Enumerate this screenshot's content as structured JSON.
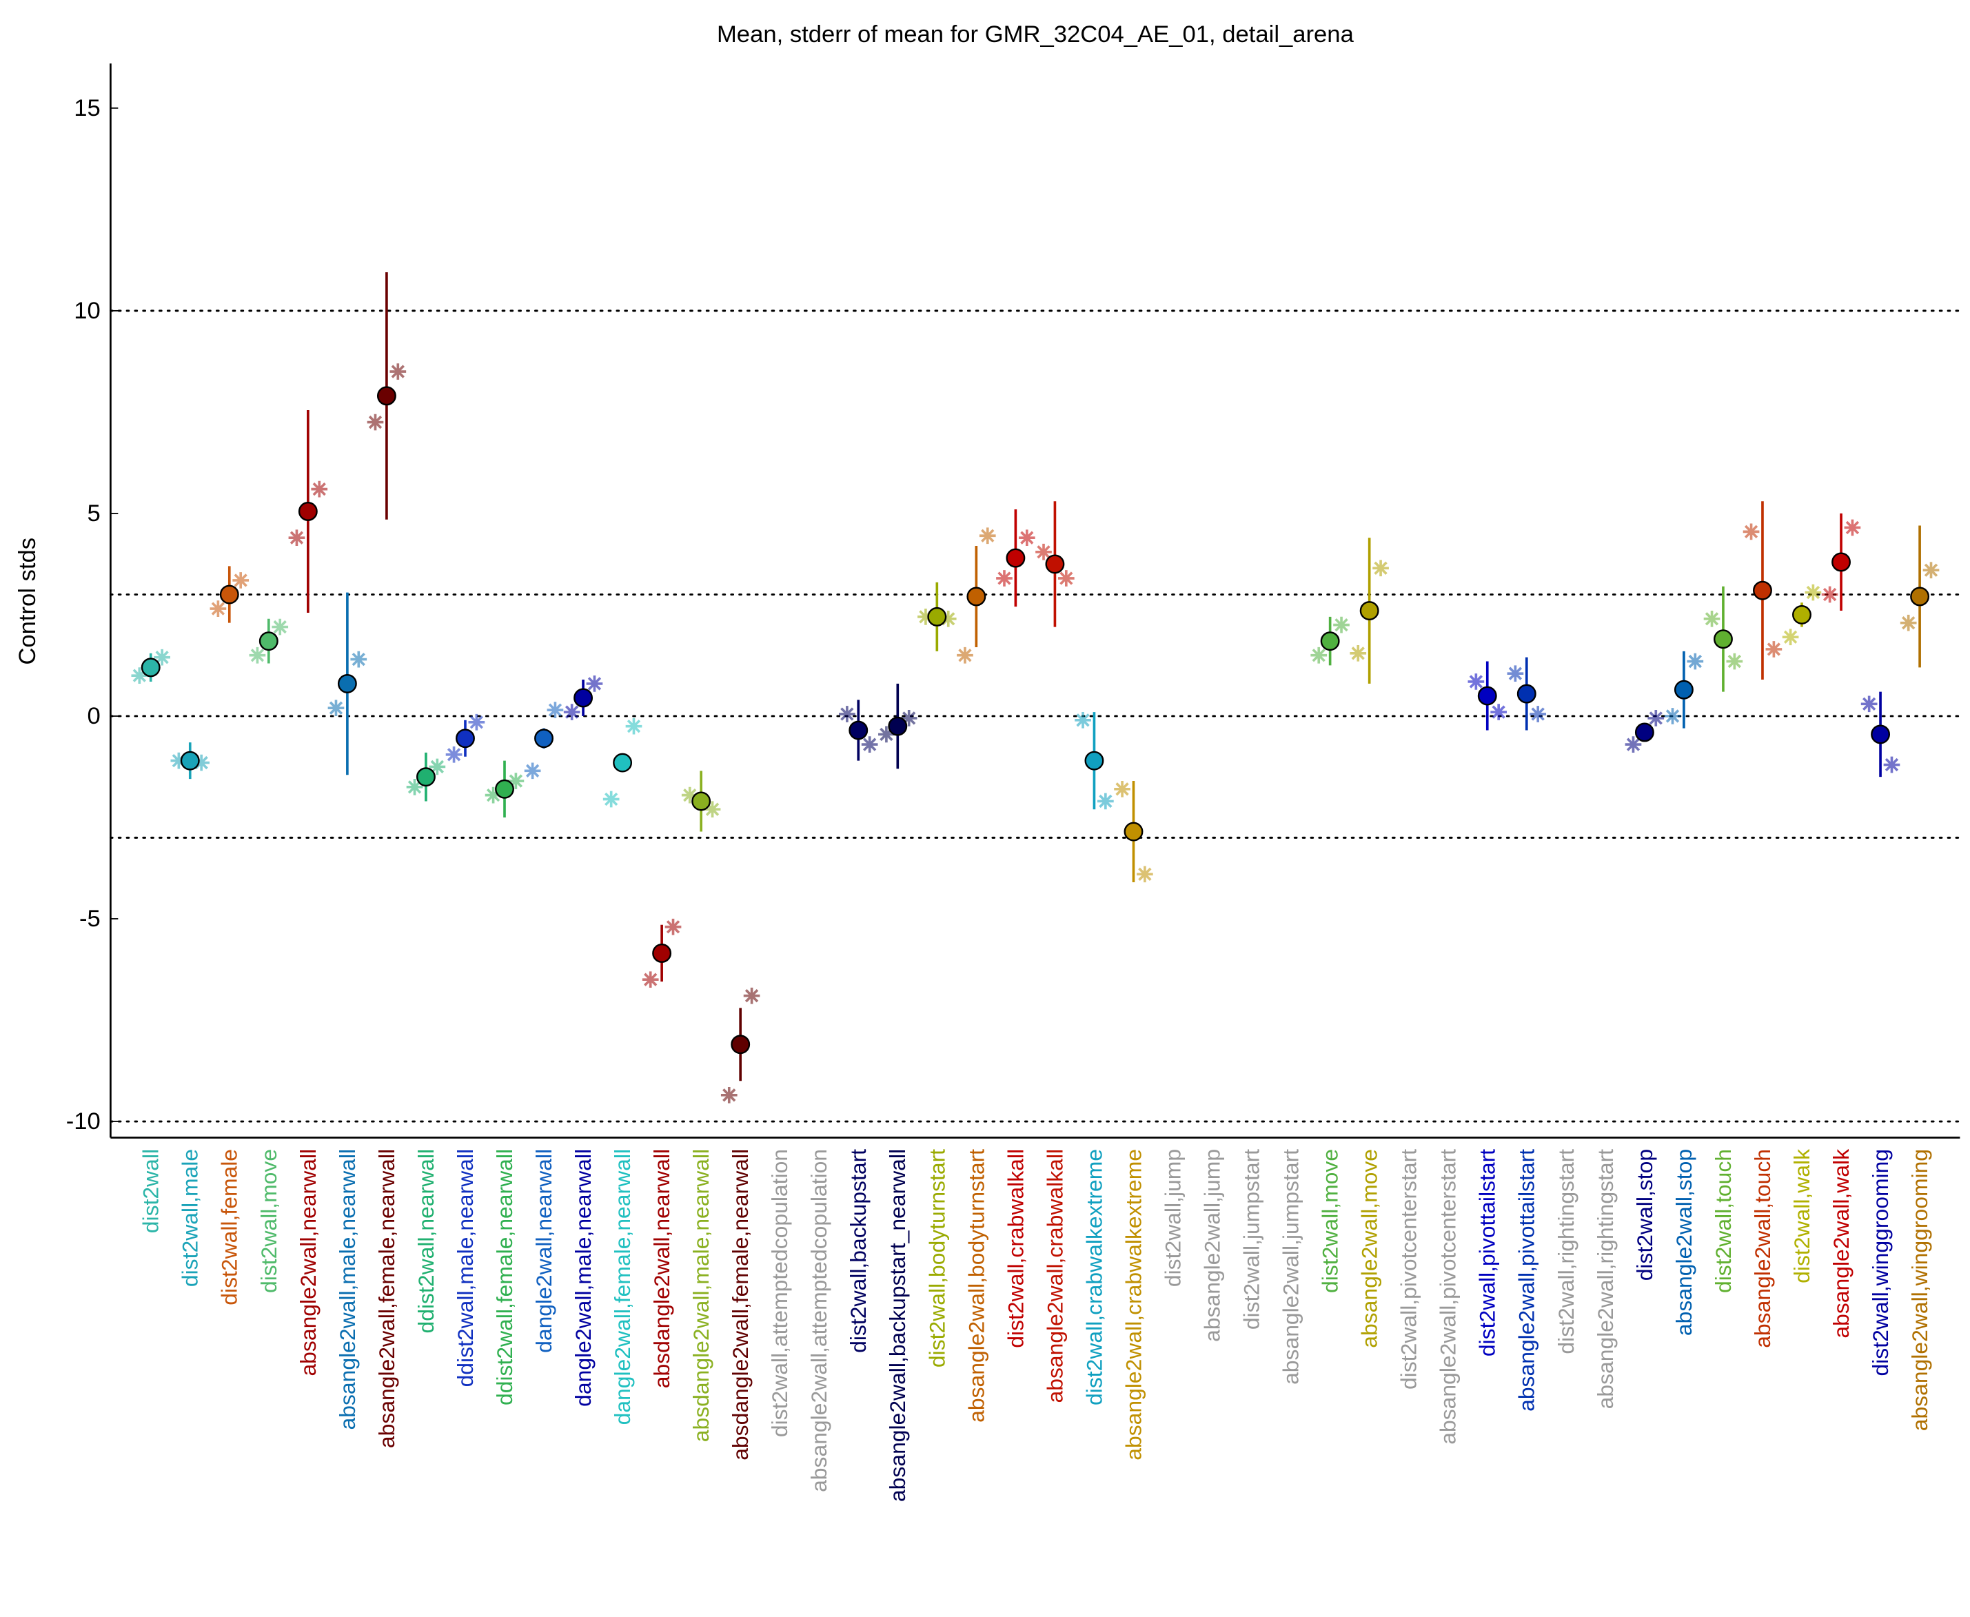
{
  "chart_data": {
    "type": "errorbar",
    "title": "Mean, stderr of mean for GMR_32C04_AE_01, detail_arena",
    "ylabel": "Control stds",
    "ylim": [
      -10.4,
      16.1
    ],
    "yticks": [
      -10,
      -5,
      0,
      5,
      10,
      15
    ],
    "reference_lines": [
      -10,
      -3,
      0,
      3,
      10
    ],
    "categories": [
      "dist2wall",
      "dist2wall,male",
      "dist2wall,female",
      "dist2wall,move",
      "absangle2wall,nearwall",
      "absangle2wall,male,nearwall",
      "absangle2wall,female,nearwall",
      "ddist2wall,nearwall",
      "ddist2wall,male,nearwall",
      "ddist2wall,female,nearwall",
      "dangle2wall,nearwall",
      "dangle2wall,male,nearwall",
      "dangle2wall,female,nearwall",
      "absdangle2wall,nearwall",
      "absdangle2wall,male,nearwall",
      "absdangle2wall,female,nearwall",
      "dist2wall,attemptedcopulation",
      "absangle2wall,attemptedcopulation",
      "dist2wall,backupstart",
      "absangle2wall,backupstart_nearwall",
      "dist2wall,bodyturnstart",
      "absangle2wall,bodyturnstart",
      "dist2wall,crabwalkall",
      "absangle2wall,crabwalkall",
      "dist2wall,crabwalkextreme",
      "absangle2wall,crabwalkextreme",
      "dist2wall,jump",
      "absangle2wall,jump",
      "dist2wall,jumpstart",
      "absangle2wall,jumpstart",
      "dist2wall,move",
      "absangle2wall,move",
      "dist2wall,pivotcenterstart",
      "absangle2wall,pivotcenterstart",
      "dist2wall,pivottailstart",
      "absangle2wall,pivottailstart",
      "dist2wall,rightingstart",
      "absangle2wall,rightingstart",
      "dist2wall,stop",
      "absangle2wall,stop",
      "dist2wall,touch",
      "absangle2wall,touch",
      "dist2wall,walk",
      "absangle2wall,walk",
      "dist2wall,winggrooming",
      "absangle2wall,winggrooming"
    ],
    "colors": [
      "#2cb5a8",
      "#1aa3b8",
      "#c8560a",
      "#4fba6a",
      "#a00000",
      "#0a6eb0",
      "#6a0000",
      "#20b070",
      "#1030c0",
      "#30b050",
      "#1060c0",
      "#0000a0",
      "#20c0c0",
      "#a00000",
      "#8ab020",
      "#600000",
      "#999999",
      "#999999",
      "#000060",
      "#000050",
      "#9aaa00",
      "#c06000",
      "#c00000",
      "#c01000",
      "#10a0c0",
      "#c09000",
      "#999999",
      "#999999",
      "#999999",
      "#999999",
      "#50b040",
      "#b0a000",
      "#999999",
      "#999999",
      "#0000c0",
      "#0030b0",
      "#999999",
      "#999999",
      "#000080",
      "#0060b0",
      "#60b030",
      "#c03000",
      "#b0b000",
      "#c00000",
      "#0000a0",
      "#b07000"
    ],
    "values": [
      1.2,
      -1.1,
      3.0,
      1.85,
      5.05,
      0.8,
      7.9,
      -1.5,
      -0.55,
      -1.8,
      -0.55,
      0.45,
      -1.15,
      -5.85,
      -2.1,
      -8.1,
      null,
      null,
      -0.35,
      -0.25,
      2.45,
      2.95,
      3.9,
      3.75,
      -1.1,
      -2.85,
      null,
      null,
      null,
      null,
      1.85,
      2.6,
      null,
      null,
      0.5,
      0.55,
      null,
      null,
      -0.4,
      0.65,
      1.9,
      3.1,
      2.5,
      3.8,
      -0.45,
      2.95
    ],
    "errors": [
      0.35,
      0.45,
      0.7,
      0.55,
      2.5,
      2.25,
      3.05,
      0.6,
      0.45,
      0.7,
      0.25,
      0.45,
      0,
      0.7,
      0.75,
      0.9,
      null,
      null,
      0.75,
      1.05,
      0.85,
      1.25,
      1.2,
      1.55,
      1.2,
      1.25,
      null,
      null,
      null,
      null,
      0.6,
      1.8,
      null,
      null,
      0.85,
      0.9,
      null,
      null,
      0.2,
      0.95,
      1.3,
      2.2,
      0.3,
      1.2,
      1.05,
      1.75
    ],
    "sub_values_1": [
      1.0,
      -1.1,
      2.65,
      1.5,
      4.4,
      0.2,
      7.25,
      -1.75,
      -0.95,
      -1.95,
      -1.35,
      0.1,
      -2.05,
      -6.5,
      -1.95,
      -9.35,
      null,
      null,
      0.05,
      -0.45,
      2.45,
      1.5,
      3.4,
      4.05,
      -0.1,
      -1.8,
      null,
      null,
      null,
      null,
      1.5,
      1.55,
      null,
      null,
      0.85,
      1.05,
      null,
      null,
      -0.7,
      0,
      2.4,
      4.55,
      1.95,
      3.0,
      0.3,
      2.3
    ],
    "sub_values_2": [
      1.45,
      -1.15,
      3.35,
      2.2,
      5.6,
      1.4,
      8.5,
      -1.25,
      -0.15,
      -1.6,
      0.15,
      0.8,
      -0.25,
      -5.2,
      -2.3,
      -6.9,
      null,
      null,
      -0.7,
      -0.05,
      2.4,
      4.45,
      4.4,
      3.4,
      -2.1,
      -3.9,
      null,
      null,
      null,
      null,
      2.25,
      3.65,
      null,
      null,
      0.1,
      0.05,
      null,
      null,
      -0.05,
      1.35,
      1.35,
      1.65,
      3.05,
      4.65,
      -1.2,
      3.6
    ]
  }
}
